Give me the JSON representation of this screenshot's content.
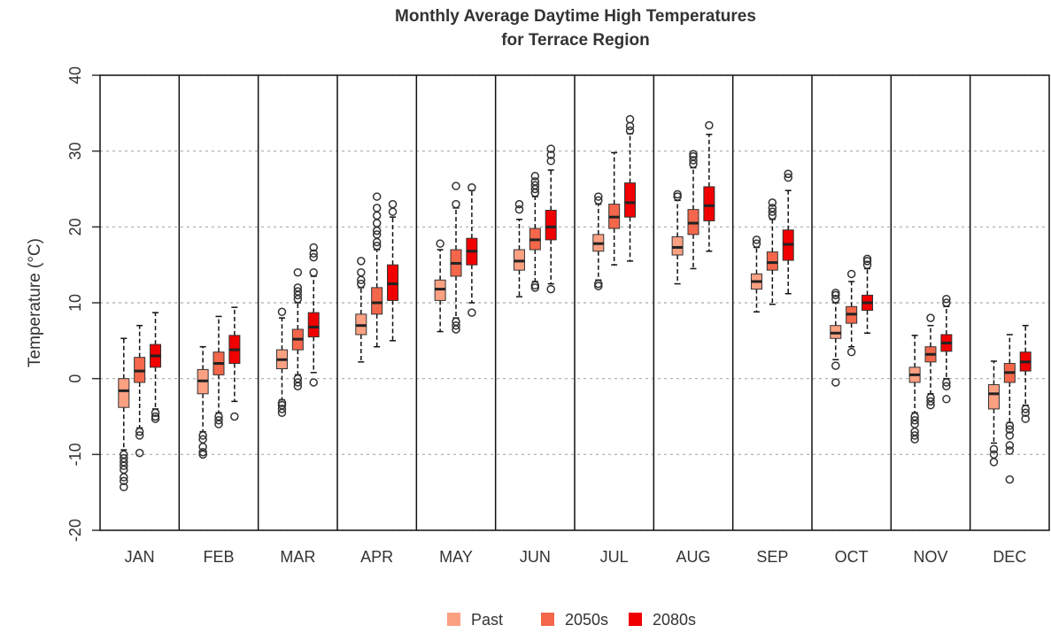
{
  "chart_data": {
    "type": "boxplot",
    "title": "Monthly Average Daytime High Temperatures",
    "subtitle": "for Terrace Region",
    "y_label": "Temperature (°C)",
    "categories": [
      "JAN",
      "FEB",
      "MAR",
      "APR",
      "MAY",
      "JUN",
      "JUL",
      "AUG",
      "SEP",
      "OCT",
      "NOV",
      "DEC"
    ],
    "ylim": [
      -20,
      40
    ],
    "yticks": [
      -20,
      -10,
      0,
      10,
      20,
      30,
      40
    ],
    "grid": true,
    "legend": "bottom",
    "series": [
      {
        "name": "Past",
        "color": "#fca082",
        "values": [
          {
            "low": -9.4,
            "q1": -3.8,
            "median": -1.6,
            "q3": 0,
            "high": 5.3,
            "outliers": [
              -10,
              -10.5,
              -11,
              -11.5,
              -12,
              -13,
              -13.5,
              -14.3
            ]
          },
          {
            "low": -7,
            "q1": -2,
            "median": -0.3,
            "q3": 1.2,
            "high": 4.2,
            "outliers": [
              -7.5,
              -8,
              -9,
              -9.7,
              -10
            ]
          },
          {
            "low": -2.8,
            "q1": 1.3,
            "median": 2.5,
            "q3": 3.8,
            "high": 8,
            "outliers": [
              8.8,
              -3.2,
              -3.5,
              -4,
              -4.5
            ]
          },
          {
            "low": 2.2,
            "q1": 5.8,
            "median": 7,
            "q3": 8.5,
            "high": 12,
            "outliers": [
              12.5,
              13,
              14,
              15.5
            ]
          },
          {
            "low": 6.2,
            "q1": 10.3,
            "median": 11.8,
            "q3": 13,
            "high": 17,
            "outliers": [
              17.8
            ]
          },
          {
            "low": 10.8,
            "q1": 14.3,
            "median": 15.5,
            "q3": 17,
            "high": 21,
            "outliers": [
              22.3,
              23
            ]
          },
          {
            "low": 13,
            "q1": 16.8,
            "median": 17.8,
            "q3": 19,
            "high": 23,
            "outliers": [
              23.5,
              24,
              12.5,
              12.2
            ]
          },
          {
            "low": 12.5,
            "q1": 16.3,
            "median": 17.3,
            "q3": 18.7,
            "high": 23.5,
            "outliers": [
              24,
              24.3
            ]
          },
          {
            "low": 8.8,
            "q1": 11.8,
            "median": 12.8,
            "q3": 13.8,
            "high": 17.3,
            "outliers": [
              17.8,
              18.3
            ]
          },
          {
            "low": 2.5,
            "q1": 5.3,
            "median": 6,
            "q3": 7,
            "high": 10,
            "outliers": [
              10.5,
              11,
              11.3,
              1.7,
              -0.5
            ]
          },
          {
            "low": -4.5,
            "q1": -0.5,
            "median": 0.5,
            "q3": 1.5,
            "high": 5.7,
            "outliers": [
              -5,
              -5.5,
              -6,
              -7,
              -7.5,
              -8
            ]
          },
          {
            "low": -8.5,
            "q1": -4,
            "median": -2,
            "q3": -0.8,
            "high": 2.3,
            "outliers": [
              -9.3,
              -10,
              -11
            ]
          }
        ]
      },
      {
        "name": "2050s",
        "color": "#f4674b",
        "values": [
          {
            "low": -6.5,
            "q1": -0.5,
            "median": 1,
            "q3": 2.8,
            "high": 7,
            "outliers": [
              -7,
              -7.5,
              -9.8
            ]
          },
          {
            "low": -4.5,
            "q1": 0.5,
            "median": 2,
            "q3": 3.5,
            "high": 8.2,
            "outliers": [
              -5,
              -5.5,
              -6
            ]
          },
          {
            "low": 0.5,
            "q1": 3.8,
            "median": 5.2,
            "q3": 6.5,
            "high": 10,
            "outliers": [
              10.5,
              11,
              11.5,
              12,
              14,
              0,
              -0.5,
              -1
            ]
          },
          {
            "low": 4.2,
            "q1": 8.5,
            "median": 10,
            "q3": 12,
            "high": 17,
            "outliers": [
              17.5,
              18,
              19,
              19.5,
              20.5,
              21.5,
              22.5,
              24
            ]
          },
          {
            "low": 8,
            "q1": 13.5,
            "median": 15.2,
            "q3": 17,
            "high": 22.5,
            "outliers": [
              23,
              25.4,
              7.5,
              7,
              6.5
            ]
          },
          {
            "low": 12.8,
            "q1": 17,
            "median": 18.3,
            "q3": 19.8,
            "high": 24,
            "outliers": [
              24.5,
              25,
              25.5,
              26,
              26.7,
              12.3,
              12
            ]
          },
          {
            "low": 15,
            "q1": 19.8,
            "median": 21.3,
            "q3": 23,
            "high": 29.8,
            "outliers": []
          },
          {
            "low": 14.5,
            "q1": 19,
            "median": 20.5,
            "q3": 22.3,
            "high": 27.8,
            "outliers": [
              28.3,
              28.8,
              29.3,
              29.6
            ]
          },
          {
            "low": 9.8,
            "q1": 14.3,
            "median": 15.3,
            "q3": 16.7,
            "high": 21,
            "outliers": [
              21.5,
              22,
              22.5,
              23.2
            ]
          },
          {
            "low": 4.2,
            "q1": 7.3,
            "median": 8.5,
            "q3": 9.5,
            "high": 12.8,
            "outliers": [
              13.8,
              3.5
            ]
          },
          {
            "low": -2,
            "q1": 2.2,
            "median": 3.2,
            "q3": 4.2,
            "high": 7,
            "outliers": [
              8,
              -2.5,
              -3,
              -3.5
            ]
          },
          {
            "low": -5.8,
            "q1": -0.5,
            "median": 0.8,
            "q3": 2,
            "high": 5.8,
            "outliers": [
              -6.2,
              -6.7,
              -7.5,
              -8.8,
              -9.5,
              -13.3
            ]
          }
        ]
      },
      {
        "name": "2080s",
        "color": "#f00000",
        "values": [
          {
            "low": -4,
            "q1": 1.5,
            "median": 3,
            "q3": 4.5,
            "high": 8.7,
            "outliers": [
              -4.5,
              -5,
              -5.3
            ]
          },
          {
            "low": -3,
            "q1": 2,
            "median": 3.8,
            "q3": 5.7,
            "high": 9.4,
            "outliers": [
              -5
            ]
          },
          {
            "low": 0.8,
            "q1": 5.5,
            "median": 6.8,
            "q3": 8.7,
            "high": 13.5,
            "outliers": [
              14,
              16,
              16.5,
              17.3,
              -0.5
            ]
          },
          {
            "low": 5,
            "q1": 10.3,
            "median": 12.5,
            "q3": 15,
            "high": 21.3,
            "outliers": [
              22,
              23
            ]
          },
          {
            "low": 10,
            "q1": 15,
            "median": 16.8,
            "q3": 18.5,
            "high": 24.8,
            "outliers": [
              25.2,
              8.7
            ]
          },
          {
            "low": 12.5,
            "q1": 18.3,
            "median": 20,
            "q3": 22.2,
            "high": 27.5,
            "outliers": [
              28.7,
              29.5,
              30.3,
              11.8
            ]
          },
          {
            "low": 15.5,
            "q1": 21.3,
            "median": 23.2,
            "q3": 25.8,
            "high": 32.3,
            "outliers": [
              32.7,
              33.3,
              34.2
            ]
          },
          {
            "low": 16.8,
            "q1": 20.8,
            "median": 22.8,
            "q3": 25.3,
            "high": 32.2,
            "outliers": [
              33.4
            ]
          },
          {
            "low": 11.2,
            "q1": 15.6,
            "median": 17.7,
            "q3": 19.6,
            "high": 24.8,
            "outliers": [
              26.5,
              27
            ]
          },
          {
            "low": 6,
            "q1": 9,
            "median": 10,
            "q3": 11,
            "high": 14.5,
            "outliers": [
              15,
              15.5,
              15.8
            ]
          },
          {
            "low": 0,
            "q1": 3.6,
            "median": 4.7,
            "q3": 5.8,
            "high": 9.5,
            "outliers": [
              10,
              10.5,
              -0.5,
              -1,
              -2.7
            ]
          },
          {
            "low": -3.5,
            "q1": 1,
            "median": 2.2,
            "q3": 3.5,
            "high": 7,
            "outliers": [
              -4,
              -4.5,
              -5.3
            ]
          }
        ]
      }
    ]
  }
}
